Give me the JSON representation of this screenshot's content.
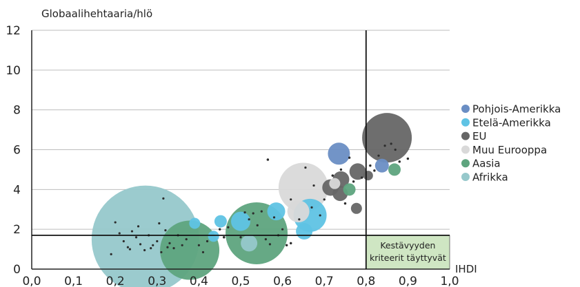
{
  "chart_data": {
    "type": "scatter",
    "title": "",
    "ylabel": "Globaalihehtaaria/hlö",
    "xlabel": "IHDI",
    "xlim": [
      0.0,
      1.0
    ],
    "ylim": [
      0,
      12
    ],
    "xticks": [
      "0,0",
      "0,1",
      "0,2",
      "0,3",
      "0,4",
      "0,5",
      "0,6",
      "0,7",
      "0,8",
      "0,9",
      "1,0"
    ],
    "yticks": [
      "0",
      "2",
      "4",
      "6",
      "8",
      "10",
      "12"
    ],
    "grid": "horizontal",
    "legend_position": "right",
    "reference_lines": {
      "x": 0.8,
      "y": 1.7
    },
    "annotation": {
      "text_line1": "Kestävyyden",
      "text_line2": "kriteerit täyttyvät",
      "region": {
        "x": [
          0.8,
          1.0
        ],
        "y": [
          0,
          1.7
        ]
      },
      "color": "#cfe6c3"
    },
    "series": [
      {
        "name": "Pohjois-Amerikka",
        "color": "#6a8ec4",
        "bubbles": [
          {
            "x": 0.735,
            "y": 5.8,
            "r": 16
          },
          {
            "x": 0.838,
            "y": 5.2,
            "r": 10
          }
        ]
      },
      {
        "name": "Etelä-Amerikka",
        "color": "#5fc3e4",
        "bubbles": [
          {
            "x": 0.666,
            "y": 2.7,
            "r": 24
          },
          {
            "x": 0.5,
            "y": 2.4,
            "r": 14
          },
          {
            "x": 0.585,
            "y": 2.9,
            "r": 13
          },
          {
            "x": 0.652,
            "y": 1.9,
            "r": 12
          },
          {
            "x": 0.452,
            "y": 2.4,
            "r": 9
          },
          {
            "x": 0.435,
            "y": 1.65,
            "r": 8
          },
          {
            "x": 0.39,
            "y": 2.3,
            "r": 8
          }
        ]
      },
      {
        "name": "EU",
        "color": "#666666",
        "bubbles": [
          {
            "x": 0.85,
            "y": 6.6,
            "r": 36
          },
          {
            "x": 0.74,
            "y": 4.5,
            "r": 12
          },
          {
            "x": 0.715,
            "y": 4.1,
            "r": 12
          },
          {
            "x": 0.78,
            "y": 4.9,
            "r": 12
          },
          {
            "x": 0.738,
            "y": 3.8,
            "r": 11
          },
          {
            "x": 0.777,
            "y": 3.05,
            "r": 8
          },
          {
            "x": 0.805,
            "y": 4.7,
            "r": 7
          }
        ]
      },
      {
        "name": "Muu Eurooppa",
        "color": "#d9d9d9",
        "bubbles": [
          {
            "x": 0.65,
            "y": 4.1,
            "r": 36
          },
          {
            "x": 0.638,
            "y": 2.9,
            "r": 16
          },
          {
            "x": 0.725,
            "y": 4.3,
            "r": 8
          }
        ]
      },
      {
        "name": "Aasia",
        "color": "#5ea47e",
        "bubbles": [
          {
            "x": 0.538,
            "y": 1.8,
            "r": 45
          },
          {
            "x": 0.378,
            "y": 0.95,
            "r": 43
          },
          {
            "x": 0.76,
            "y": 4.0,
            "r": 9
          },
          {
            "x": 0.868,
            "y": 5.0,
            "r": 9
          }
        ]
      },
      {
        "name": "Afrikka",
        "color": "#96c8cb",
        "bubbles": [
          {
            "x": 0.272,
            "y": 1.5,
            "r": 78
          },
          {
            "x": 0.52,
            "y": 1.3,
            "r": 12
          }
        ]
      }
    ],
    "small_points": [
      {
        "x": 0.19,
        "y": 0.75
      },
      {
        "x": 0.2,
        "y": 2.35
      },
      {
        "x": 0.21,
        "y": 1.8
      },
      {
        "x": 0.22,
        "y": 1.4
      },
      {
        "x": 0.23,
        "y": 1.1
      },
      {
        "x": 0.24,
        "y": 1.9
      },
      {
        "x": 0.25,
        "y": 1.6
      },
      {
        "x": 0.26,
        "y": 1.25
      },
      {
        "x": 0.27,
        "y": 0.95
      },
      {
        "x": 0.28,
        "y": 1.7
      },
      {
        "x": 0.29,
        "y": 1.2
      },
      {
        "x": 0.3,
        "y": 1.4
      },
      {
        "x": 0.31,
        "y": 0.85
      },
      {
        "x": 0.315,
        "y": 3.55
      },
      {
        "x": 0.32,
        "y": 1.95
      },
      {
        "x": 0.33,
        "y": 1.3
      },
      {
        "x": 0.34,
        "y": 1.05
      },
      {
        "x": 0.35,
        "y": 1.7
      },
      {
        "x": 0.36,
        "y": 1.2
      },
      {
        "x": 0.37,
        "y": 1.5
      },
      {
        "x": 0.235,
        "y": 1.0
      },
      {
        "x": 0.255,
        "y": 2.15
      },
      {
        "x": 0.285,
        "y": 1.05
      },
      {
        "x": 0.305,
        "y": 2.3
      },
      {
        "x": 0.325,
        "y": 1.1
      },
      {
        "x": 0.4,
        "y": 1.2
      },
      {
        "x": 0.41,
        "y": 0.85
      },
      {
        "x": 0.42,
        "y": 1.4
      },
      {
        "x": 0.45,
        "y": 2.0
      },
      {
        "x": 0.47,
        "y": 2.1
      },
      {
        "x": 0.5,
        "y": 1.6
      },
      {
        "x": 0.52,
        "y": 2.5
      },
      {
        "x": 0.53,
        "y": 2.8
      },
      {
        "x": 0.54,
        "y": 2.2
      },
      {
        "x": 0.55,
        "y": 2.9
      },
      {
        "x": 0.56,
        "y": 1.5
      },
      {
        "x": 0.57,
        "y": 1.25
      },
      {
        "x": 0.58,
        "y": 2.6
      },
      {
        "x": 0.6,
        "y": 2.0
      },
      {
        "x": 0.61,
        "y": 1.2
      },
      {
        "x": 0.62,
        "y": 3.5
      },
      {
        "x": 0.64,
        "y": 2.5
      },
      {
        "x": 0.655,
        "y": 5.1
      },
      {
        "x": 0.67,
        "y": 3.1
      },
      {
        "x": 0.69,
        "y": 2.7
      },
      {
        "x": 0.7,
        "y": 3.5
      },
      {
        "x": 0.72,
        "y": 4.7
      },
      {
        "x": 0.74,
        "y": 5.0
      },
      {
        "x": 0.75,
        "y": 3.3
      },
      {
        "x": 0.76,
        "y": 5.6
      },
      {
        "x": 0.77,
        "y": 4.4
      },
      {
        "x": 0.79,
        "y": 4.6
      },
      {
        "x": 0.81,
        "y": 5.2
      },
      {
        "x": 0.82,
        "y": 4.95
      },
      {
        "x": 0.83,
        "y": 5.7
      },
      {
        "x": 0.845,
        "y": 6.2
      },
      {
        "x": 0.86,
        "y": 6.3
      },
      {
        "x": 0.87,
        "y": 6.0
      },
      {
        "x": 0.88,
        "y": 5.4
      },
      {
        "x": 0.9,
        "y": 5.55
      },
      {
        "x": 0.565,
        "y": 5.5
      },
      {
        "x": 0.59,
        "y": 1.7
      },
      {
        "x": 0.62,
        "y": 1.3
      },
      {
        "x": 0.46,
        "y": 1.6
      },
      {
        "x": 0.51,
        "y": 2.85
      },
      {
        "x": 0.675,
        "y": 4.2
      }
    ]
  }
}
